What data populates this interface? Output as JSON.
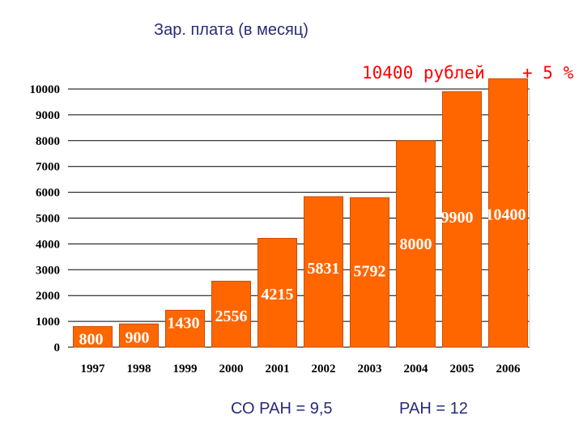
{
  "header": {
    "title": "Зар. плата (в месяц)"
  },
  "annotations": {
    "salary": "10400 рублей",
    "percent": "+ 5 %",
    "note_left": "СО РАН = 9,5",
    "note_right": "РАН = 12"
  },
  "colors": {
    "bar": "#ff6600",
    "bar_edge": "#c94d00",
    "grid": "#000000",
    "title_text": "#2a2a7a",
    "annotation_text": "#ff0000"
  },
  "chart_data": {
    "type": "bar",
    "title": "Зар. плата (в месяц)",
    "categories": [
      "1997",
      "1998",
      "1999",
      "2000",
      "2001",
      "2002",
      "2003",
      "2004",
      "2005",
      "2006"
    ],
    "values": [
      800,
      900,
      1430,
      2556,
      4215,
      5831,
      5792,
      8000,
      9900,
      10400
    ],
    "data_labels": [
      "800",
      "900",
      "1430",
      "2556",
      "4215",
      "5831",
      "5792",
      "8000",
      "9900",
      "10400"
    ],
    "y_ticks": [
      "0",
      "1000",
      "2000",
      "3000",
      "4000",
      "5000",
      "6000",
      "7000",
      "8000",
      "9000",
      "10000"
    ],
    "ylim": [
      0,
      10000
    ],
    "xlabel": "",
    "ylabel": "",
    "grid": true
  }
}
